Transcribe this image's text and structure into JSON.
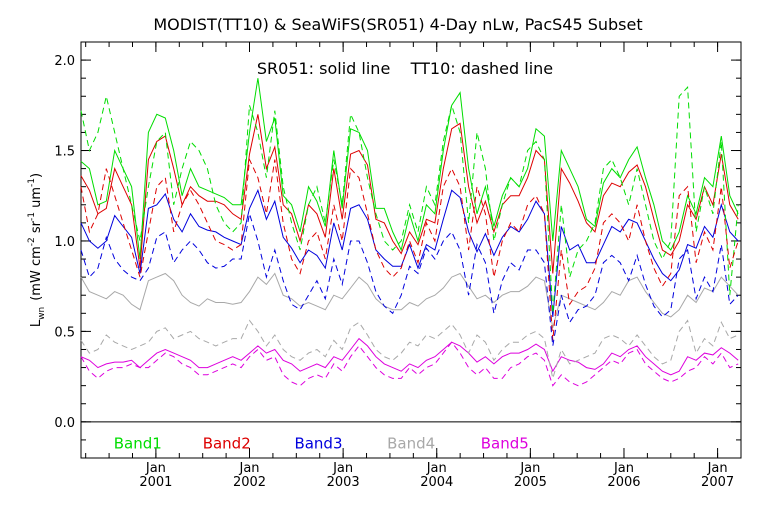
{
  "chart_data": {
    "type": "line",
    "title": "MODIST(TT10) & SeaWiFS(SR051) 4-Day nLw, PacS45 Subset",
    "annotation": "SR051: solid line    TT10: dashed line",
    "ylabel_main": "L",
    "ylabel_sub": "wn",
    "ylabel_unit_a": "(mW cm",
    "ylabel_sup_a": "-2",
    "ylabel_unit_b": " sr",
    "ylabel_sup_b": "-1",
    "ylabel_unit_c": " um",
    "ylabel_sup_c": "-1",
    "ylabel_close": ")",
    "xlim": [
      2000.2,
      2007.25
    ],
    "ylim": [
      -0.2,
      2.1
    ],
    "yticks": [
      0.0,
      0.5,
      1.0,
      1.5,
      2.0
    ],
    "ytick_labels": [
      "0.0",
      "0.5",
      "1.0",
      "1.5",
      "2.0"
    ],
    "zero_line": 0.0,
    "xticks": [
      {
        "month": "Jan",
        "year": "2001",
        "x": 2001.0
      },
      {
        "month": "Jan",
        "year": "2002",
        "x": 2002.0
      },
      {
        "month": "Jan",
        "year": "2003",
        "x": 2003.0
      },
      {
        "month": "Jan",
        "year": "2004",
        "x": 2004.0
      },
      {
        "month": "Jan",
        "year": "2005",
        "x": 2005.0
      },
      {
        "month": "Jan",
        "year": "2006",
        "x": 2006.0
      },
      {
        "month": "Jan",
        "year": "2007",
        "x": 2007.0
      }
    ],
    "x": [
      2000.2,
      2000.29,
      2000.38,
      2000.47,
      2000.56,
      2000.65,
      2000.74,
      2000.83,
      2000.92,
      2001.01,
      2001.1,
      2001.19,
      2001.28,
      2001.37,
      2001.46,
      2001.55,
      2001.64,
      2001.73,
      2001.82,
      2001.91,
      2002.0,
      2002.09,
      2002.18,
      2002.27,
      2002.36,
      2002.45,
      2002.54,
      2002.63,
      2002.72,
      2002.81,
      2002.9,
      2002.99,
      2003.08,
      2003.17,
      2003.26,
      2003.35,
      2003.44,
      2003.53,
      2003.62,
      2003.71,
      2003.8,
      2003.89,
      2003.98,
      2004.07,
      2004.16,
      2004.25,
      2004.34,
      2004.43,
      2004.52,
      2004.61,
      2004.7,
      2004.79,
      2004.88,
      2004.97,
      2005.06,
      2005.15,
      2005.24,
      2005.33,
      2005.42,
      2005.51,
      2005.6,
      2005.69,
      2005.78,
      2005.87,
      2005.96,
      2006.05,
      2006.14,
      2006.23,
      2006.32,
      2006.41,
      2006.5,
      2006.59,
      2006.68,
      2006.77,
      2006.86,
      2006.95,
      2007.04,
      2007.13,
      2007.22
    ],
    "series": [
      {
        "name": "Band1",
        "color": "#00dd00",
        "style": "solid",
        "values": [
          1.44,
          1.4,
          1.2,
          1.22,
          1.5,
          1.4,
          1.3,
          0.9,
          1.6,
          1.7,
          1.68,
          1.5,
          1.25,
          1.4,
          1.3,
          1.28,
          1.26,
          1.24,
          1.2,
          1.2,
          1.6,
          1.9,
          1.55,
          1.68,
          1.25,
          1.2,
          1.05,
          1.3,
          1.22,
          1.08,
          1.5,
          1.18,
          1.62,
          1.6,
          1.5,
          1.18,
          1.18,
          1.05,
          0.95,
          1.15,
          1.0,
          1.2,
          1.15,
          1.5,
          1.75,
          1.82,
          1.4,
          1.15,
          1.3,
          1.08,
          1.25,
          1.35,
          1.3,
          1.4,
          1.62,
          1.58,
          1.0,
          1.5,
          1.4,
          1.3,
          1.12,
          1.08,
          1.32,
          1.4,
          1.35,
          1.45,
          1.52,
          1.35,
          1.2,
          1.0,
          0.95,
          1.05,
          1.25,
          1.15,
          1.35,
          1.3,
          1.58,
          1.25,
          1.15
        ]
      },
      {
        "name": "Band2",
        "color": "#dd0000",
        "style": "solid",
        "values": [
          1.36,
          1.28,
          1.15,
          1.18,
          1.4,
          1.3,
          1.2,
          0.85,
          1.45,
          1.55,
          1.58,
          1.4,
          1.2,
          1.3,
          1.25,
          1.22,
          1.22,
          1.2,
          1.15,
          1.12,
          1.48,
          1.7,
          1.4,
          1.52,
          1.2,
          1.15,
          1.0,
          1.2,
          1.15,
          1.02,
          1.4,
          1.12,
          1.48,
          1.5,
          1.42,
          1.12,
          1.1,
          1.0,
          0.93,
          1.05,
          0.98,
          1.12,
          1.1,
          1.4,
          1.62,
          1.65,
          1.3,
          1.1,
          1.22,
          1.05,
          1.2,
          1.25,
          1.25,
          1.35,
          1.5,
          1.45,
          0.82,
          1.4,
          1.32,
          1.22,
          1.1,
          1.05,
          1.25,
          1.32,
          1.3,
          1.38,
          1.42,
          1.3,
          1.12,
          0.95,
          0.92,
          1.0,
          1.2,
          1.12,
          1.3,
          1.2,
          1.48,
          1.2,
          1.12
        ]
      },
      {
        "name": "Band3",
        "color": "#0000dd",
        "style": "solid",
        "values": [
          1.1,
          1.0,
          0.96,
          1.0,
          1.14,
          1.08,
          1.02,
          0.82,
          1.18,
          1.2,
          1.26,
          1.12,
          1.05,
          1.15,
          1.08,
          1.06,
          1.05,
          1.02,
          1.0,
          0.98,
          1.18,
          1.28,
          1.12,
          1.22,
          1.02,
          0.96,
          0.88,
          0.95,
          0.92,
          0.85,
          1.1,
          0.95,
          1.18,
          1.2,
          1.12,
          0.95,
          0.9,
          0.86,
          0.86,
          0.98,
          0.85,
          0.98,
          0.95,
          1.12,
          1.28,
          1.24,
          1.05,
          0.94,
          1.04,
          0.92,
          1.02,
          1.08,
          1.05,
          1.12,
          1.22,
          1.15,
          0.58,
          1.08,
          0.95,
          0.98,
          0.88,
          0.88,
          0.98,
          1.08,
          1.05,
          1.12,
          1.1,
          1.0,
          0.9,
          0.82,
          0.78,
          0.84,
          0.98,
          0.96,
          1.08,
          1.02,
          1.2,
          1.05,
          1.0
        ]
      },
      {
        "name": "Band4",
        "color": "#a8a8a8",
        "style": "solid",
        "values": [
          0.8,
          0.72,
          0.7,
          0.68,
          0.72,
          0.7,
          0.65,
          0.62,
          0.78,
          0.8,
          0.82,
          0.78,
          0.7,
          0.66,
          0.64,
          0.68,
          0.66,
          0.66,
          0.65,
          0.66,
          0.72,
          0.8,
          0.76,
          0.82,
          0.7,
          0.68,
          0.64,
          0.66,
          0.64,
          0.62,
          0.7,
          0.68,
          0.74,
          0.8,
          0.76,
          0.68,
          0.64,
          0.62,
          0.62,
          0.66,
          0.64,
          0.68,
          0.7,
          0.74,
          0.8,
          0.82,
          0.75,
          0.68,
          0.7,
          0.66,
          0.7,
          0.72,
          0.72,
          0.75,
          0.8,
          0.78,
          0.52,
          0.7,
          0.68,
          0.66,
          0.64,
          0.62,
          0.66,
          0.72,
          0.7,
          0.78,
          0.8,
          0.72,
          0.66,
          0.6,
          0.58,
          0.62,
          0.7,
          0.66,
          0.74,
          0.72,
          0.8,
          0.75,
          0.7
        ]
      },
      {
        "name": "Band5",
        "color": "#dd00dd",
        "style": "solid",
        "values": [
          0.36,
          0.34,
          0.3,
          0.32,
          0.33,
          0.33,
          0.34,
          0.3,
          0.34,
          0.38,
          0.4,
          0.38,
          0.36,
          0.34,
          0.3,
          0.3,
          0.32,
          0.34,
          0.36,
          0.34,
          0.38,
          0.42,
          0.38,
          0.4,
          0.34,
          0.32,
          0.28,
          0.3,
          0.32,
          0.3,
          0.36,
          0.34,
          0.4,
          0.46,
          0.42,
          0.36,
          0.32,
          0.3,
          0.28,
          0.32,
          0.3,
          0.34,
          0.36,
          0.4,
          0.44,
          0.42,
          0.38,
          0.33,
          0.36,
          0.32,
          0.36,
          0.38,
          0.38,
          0.4,
          0.43,
          0.4,
          0.28,
          0.36,
          0.34,
          0.33,
          0.3,
          0.29,
          0.32,
          0.38,
          0.36,
          0.4,
          0.42,
          0.36,
          0.32,
          0.28,
          0.26,
          0.28,
          0.36,
          0.34,
          0.38,
          0.37,
          0.41,
          0.38,
          0.34
        ]
      },
      {
        "name": "Band1",
        "color": "#00dd00",
        "style": "dashed",
        "values": [
          1.72,
          1.5,
          1.6,
          1.8,
          1.6,
          1.4,
          1.2,
          1.0,
          1.3,
          1.55,
          1.6,
          1.2,
          1.4,
          1.55,
          1.5,
          1.4,
          1.2,
          1.1,
          1.05,
          1.1,
          1.75,
          1.6,
          1.35,
          1.72,
          1.3,
          1.1,
          0.95,
          1.2,
          1.3,
          1.1,
          1.45,
          1.2,
          1.7,
          1.6,
          1.35,
          1.15,
          1.0,
          0.95,
          1.0,
          1.2,
          1.05,
          1.3,
          1.2,
          1.55,
          1.75,
          1.6,
          1.1,
          1.6,
          1.4,
          1.0,
          1.2,
          1.35,
          1.3,
          1.5,
          1.55,
          1.45,
          0.6,
          1.2,
          0.8,
          0.95,
          1.0,
          1.1,
          1.4,
          1.45,
          1.35,
          1.2,
          1.4,
          1.2,
          1.0,
          0.9,
          1.0,
          1.8,
          1.85,
          1.05,
          1.3,
          1.15,
          1.55,
          0.7,
          1.2
        ]
      },
      {
        "name": "Band2",
        "color": "#dd0000",
        "style": "dashed",
        "values": [
          1.3,
          1.05,
          1.15,
          1.4,
          1.25,
          1.1,
          0.95,
          0.8,
          1.05,
          1.3,
          1.35,
          1.05,
          1.2,
          1.28,
          1.2,
          1.1,
          1.0,
          0.98,
          0.95,
          0.98,
          1.45,
          1.35,
          1.15,
          1.45,
          1.1,
          0.9,
          0.82,
          1.0,
          1.05,
          0.9,
          1.2,
          1.0,
          1.4,
          1.35,
          1.15,
          0.95,
          0.85,
          0.8,
          0.85,
          1.0,
          0.88,
          1.1,
          1.0,
          1.3,
          1.4,
          1.3,
          0.95,
          1.3,
          1.15,
          0.8,
          1.0,
          1.1,
          1.05,
          1.2,
          1.25,
          1.15,
          0.45,
          0.95,
          0.65,
          0.72,
          0.75,
          0.85,
          1.1,
          1.15,
          1.1,
          1.0,
          1.2,
          1.0,
          0.85,
          0.75,
          0.82,
          1.25,
          1.3,
          0.88,
          1.05,
          0.95,
          1.3,
          0.85,
          1.0
        ]
      },
      {
        "name": "Band3",
        "color": "#0000dd",
        "style": "dashed",
        "values": [
          0.95,
          0.8,
          0.85,
          1.02,
          0.9,
          0.84,
          0.8,
          0.78,
          0.85,
          1.02,
          1.05,
          0.88,
          0.95,
          1.0,
          0.95,
          0.88,
          0.85,
          0.86,
          0.9,
          0.9,
          1.15,
          1.0,
          0.8,
          0.95,
          0.78,
          0.65,
          0.62,
          0.7,
          0.78,
          0.68,
          0.9,
          0.76,
          1.0,
          1.0,
          0.88,
          0.72,
          0.64,
          0.6,
          0.7,
          0.86,
          0.82,
          0.96,
          0.9,
          1.0,
          1.05,
          0.95,
          0.7,
          0.98,
          0.88,
          0.6,
          0.78,
          0.88,
          0.84,
          0.95,
          0.95,
          0.88,
          0.42,
          0.7,
          0.55,
          0.62,
          0.64,
          0.7,
          0.88,
          0.92,
          0.88,
          0.78,
          0.92,
          0.76,
          0.64,
          0.58,
          0.62,
          0.9,
          0.95,
          0.68,
          0.8,
          0.72,
          0.98,
          0.65,
          0.7
        ]
      },
      {
        "name": "Band4",
        "color": "#a8a8a8",
        "style": "dashed",
        "values": [
          0.45,
          0.38,
          0.4,
          0.48,
          0.44,
          0.42,
          0.4,
          0.42,
          0.44,
          0.5,
          0.52,
          0.46,
          0.48,
          0.5,
          0.46,
          0.44,
          0.42,
          0.44,
          0.46,
          0.46,
          0.56,
          0.5,
          0.42,
          0.48,
          0.4,
          0.36,
          0.34,
          0.38,
          0.4,
          0.36,
          0.45,
          0.4,
          0.52,
          0.55,
          0.48,
          0.4,
          0.36,
          0.34,
          0.38,
          0.44,
          0.42,
          0.48,
          0.46,
          0.5,
          0.54,
          0.48,
          0.38,
          0.48,
          0.44,
          0.34,
          0.4,
          0.44,
          0.44,
          0.48,
          0.5,
          0.46,
          0.24,
          0.4,
          0.32,
          0.34,
          0.36,
          0.38,
          0.46,
          0.48,
          0.46,
          0.42,
          0.48,
          0.42,
          0.36,
          0.32,
          0.34,
          0.5,
          0.56,
          0.38,
          0.46,
          0.42,
          0.55,
          0.46,
          0.48
        ]
      },
      {
        "name": "Band5",
        "color": "#dd00dd",
        "style": "dashed",
        "values": [
          0.36,
          0.28,
          0.24,
          0.28,
          0.3,
          0.3,
          0.32,
          0.3,
          0.3,
          0.34,
          0.38,
          0.36,
          0.32,
          0.3,
          0.26,
          0.26,
          0.28,
          0.3,
          0.32,
          0.3,
          0.36,
          0.4,
          0.34,
          0.36,
          0.26,
          0.22,
          0.2,
          0.24,
          0.26,
          0.24,
          0.32,
          0.28,
          0.36,
          0.42,
          0.36,
          0.3,
          0.26,
          0.24,
          0.24,
          0.3,
          0.26,
          0.3,
          0.32,
          0.38,
          0.44,
          0.38,
          0.3,
          0.26,
          0.3,
          0.24,
          0.24,
          0.3,
          0.32,
          0.36,
          0.38,
          0.34,
          0.2,
          0.26,
          0.22,
          0.2,
          0.22,
          0.26,
          0.3,
          0.34,
          0.32,
          0.38,
          0.4,
          0.32,
          0.28,
          0.24,
          0.22,
          0.24,
          0.28,
          0.3,
          0.36,
          0.32,
          0.38,
          0.3,
          0.32
        ]
      }
    ],
    "legend": [
      {
        "label": "Band1",
        "color": "#00dd00",
        "x": 2000.55
      },
      {
        "label": "Band2",
        "color": "#dd0000",
        "x": 2001.5
      },
      {
        "label": "Band3",
        "color": "#0000dd",
        "x": 2002.48
      },
      {
        "label": "Band4",
        "color": "#a8a8a8",
        "x": 2003.47
      },
      {
        "label": "Band5",
        "color": "#dd00dd",
        "x": 2004.47
      }
    ],
    "legend_y": -0.12,
    "grid": false,
    "legend_placement": "bottom, inside plot"
  }
}
